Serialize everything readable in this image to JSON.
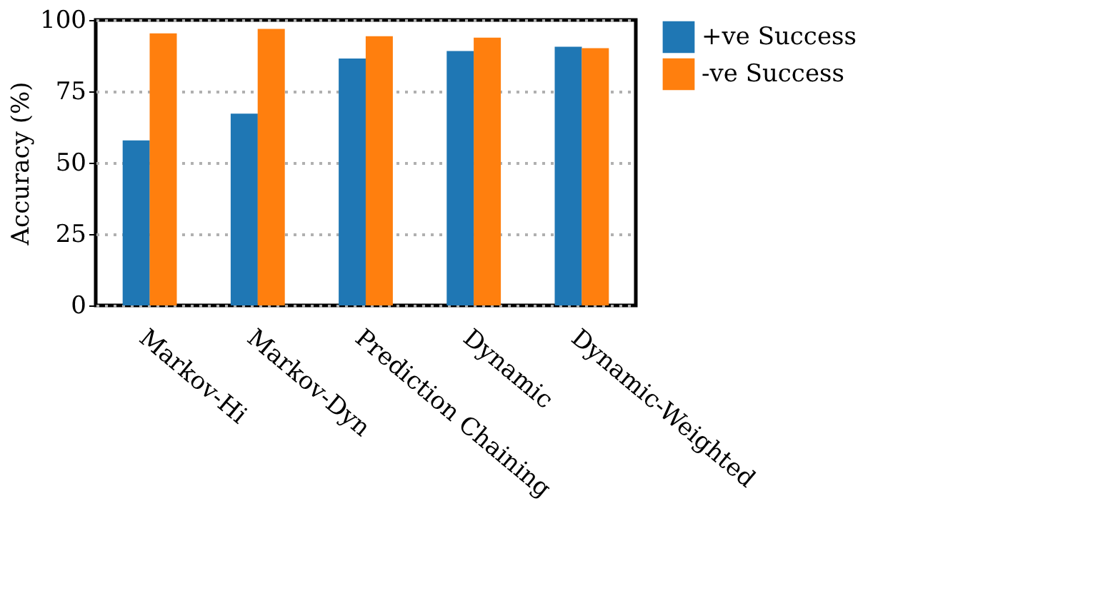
{
  "chart_data": {
    "type": "bar",
    "ylabel": "Accuracy (%)",
    "categories": [
      "Markov-Hi",
      "Markov-Dyn",
      "Prediction Chaining",
      "Dynamic",
      "Dynamic-Weighted"
    ],
    "series": [
      {
        "name": "+ve Success",
        "color": "#1f77b4",
        "values": [
          57.8,
          67.2,
          86.5,
          89.1,
          90.6
        ]
      },
      {
        "name": "-ve Success",
        "color": "#ff7f0e",
        "values": [
          95.3,
          96.9,
          94.3,
          93.8,
          90.1
        ]
      }
    ],
    "ylim": [
      0,
      100
    ],
    "yticks": [
      0,
      25,
      50,
      75,
      100
    ],
    "grid": "y",
    "legend": "right"
  }
}
